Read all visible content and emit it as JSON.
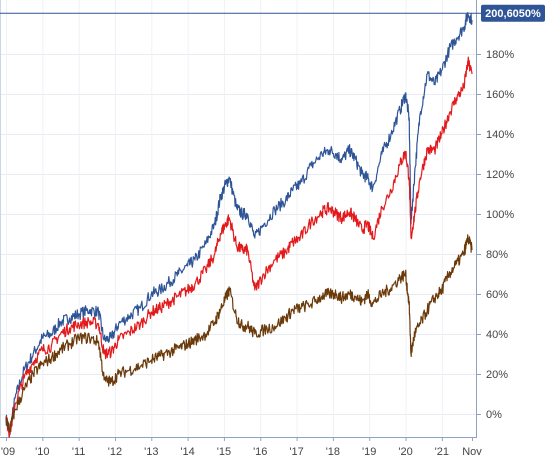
{
  "chart_data": {
    "type": "line",
    "title": "",
    "xlabel": "",
    "ylabel": "",
    "x_ticks": [
      "'09",
      "'10",
      "'11",
      "'12",
      "'13",
      "'14",
      "'15",
      "'16",
      "'17",
      "'18",
      "'19",
      "'20",
      "'21",
      "Nov"
    ],
    "y_ticks": [
      "0%",
      "20%",
      "40%",
      "60%",
      "80%",
      "100%",
      "120%",
      "140%",
      "160%",
      "180%"
    ],
    "x_range": [
      2009.0,
      2021.83
    ],
    "ylim": [
      -12,
      205
    ],
    "grid": true,
    "legend": "none",
    "current_value_label": "200,6050%",
    "current_value": 200.605,
    "series": [
      {
        "color": "#2f5597",
        "x": [
          2009.0,
          2009.1,
          2009.25,
          2009.5,
          2009.75,
          2010.0,
          2010.25,
          2010.5,
          2010.75,
          2011.0,
          2011.3,
          2011.55,
          2011.7,
          2011.9,
          2012.1,
          2012.4,
          2012.7,
          2013.0,
          2013.25,
          2013.5,
          2013.75,
          2014.0,
          2014.2,
          2014.5,
          2014.75,
          2014.9,
          2015.05,
          2015.15,
          2015.35,
          2015.5,
          2015.65,
          2015.85,
          2016.1,
          2016.4,
          2016.7,
          2016.9,
          2017.1,
          2017.4,
          2017.7,
          2017.9,
          2018.1,
          2018.25,
          2018.45,
          2018.6,
          2018.8,
          2018.95,
          2019.1,
          2019.35,
          2019.6,
          2019.85,
          2020.0,
          2020.1,
          2020.15,
          2020.25,
          2020.4,
          2020.6,
          2020.8,
          2021.0,
          2021.2,
          2021.4,
          2021.6,
          2021.72,
          2021.83
        ],
        "values": [
          -2,
          -10,
          8,
          22,
          30,
          38,
          40,
          46,
          48,
          50,
          52,
          51,
          37,
          38,
          45,
          49,
          53,
          60,
          62,
          66,
          70,
          74,
          77,
          85,
          95,
          108,
          115,
          118,
          103,
          100,
          100,
          88,
          95,
          102,
          107,
          112,
          115,
          124,
          130,
          132,
          130,
          127,
          132,
          128,
          120,
          118,
          113,
          130,
          140,
          152,
          160,
          148,
          95,
          120,
          150,
          170,
          165,
          172,
          182,
          188,
          193,
          200,
          197
        ]
      },
      {
        "color": "#e31a1c",
        "x": [
          2009.0,
          2009.1,
          2009.25,
          2009.5,
          2009.75,
          2010.0,
          2010.25,
          2010.5,
          2010.75,
          2011.0,
          2011.3,
          2011.55,
          2011.7,
          2011.9,
          2012.1,
          2012.4,
          2012.7,
          2013.0,
          2013.25,
          2013.5,
          2013.75,
          2014.0,
          2014.2,
          2014.5,
          2014.75,
          2014.9,
          2015.05,
          2015.15,
          2015.35,
          2015.5,
          2015.65,
          2015.85,
          2016.1,
          2016.4,
          2016.7,
          2016.9,
          2017.1,
          2017.4,
          2017.7,
          2017.9,
          2018.1,
          2018.25,
          2018.45,
          2018.6,
          2018.8,
          2018.95,
          2019.1,
          2019.35,
          2019.6,
          2019.85,
          2020.0,
          2020.1,
          2020.15,
          2020.25,
          2020.4,
          2020.6,
          2020.8,
          2021.0,
          2021.2,
          2021.4,
          2021.6,
          2021.72,
          2021.83
        ],
        "values": [
          -2,
          -10,
          5,
          18,
          26,
          32,
          34,
          40,
          43,
          45,
          46,
          45,
          30,
          31,
          37,
          41,
          45,
          51,
          53,
          56,
          59,
          62,
          65,
          72,
          80,
          90,
          95,
          98,
          84,
          82,
          82,
          62,
          70,
          77,
          81,
          86,
          88,
          96,
          101,
          103,
          100,
          98,
          101,
          98,
          92,
          95,
          88,
          103,
          112,
          125,
          131,
          118,
          88,
          100,
          118,
          132,
          132,
          140,
          150,
          158,
          163,
          176,
          170
        ]
      },
      {
        "color": "#6b3a0a",
        "x": [
          2009.0,
          2009.1,
          2009.25,
          2009.5,
          2009.75,
          2010.0,
          2010.25,
          2010.5,
          2010.75,
          2011.0,
          2011.3,
          2011.55,
          2011.7,
          2011.9,
          2012.1,
          2012.4,
          2012.7,
          2013.0,
          2013.25,
          2013.5,
          2013.75,
          2014.0,
          2014.2,
          2014.5,
          2014.75,
          2014.9,
          2015.05,
          2015.15,
          2015.35,
          2015.5,
          2015.65,
          2015.85,
          2016.1,
          2016.4,
          2016.7,
          2016.9,
          2017.1,
          2017.4,
          2017.7,
          2017.9,
          2018.1,
          2018.25,
          2018.45,
          2018.6,
          2018.8,
          2018.95,
          2019.1,
          2019.35,
          2019.6,
          2019.85,
          2020.0,
          2020.1,
          2020.15,
          2020.25,
          2020.4,
          2020.6,
          2020.8,
          2021.0,
          2021.2,
          2021.4,
          2021.6,
          2021.72,
          2021.83
        ],
        "values": [
          -2,
          -8,
          2,
          12,
          20,
          25,
          28,
          32,
          35,
          38,
          38,
          36,
          17,
          16,
          20,
          22,
          24,
          27,
          29,
          31,
          33,
          35,
          37,
          40,
          46,
          52,
          58,
          62,
          48,
          44,
          44,
          40,
          42,
          44,
          48,
          52,
          53,
          55,
          59,
          60,
          60,
          58,
          60,
          59,
          56,
          60,
          55,
          60,
          63,
          68,
          70,
          55,
          30,
          40,
          45,
          52,
          58,
          62,
          70,
          75,
          80,
          88,
          82
        ]
      }
    ]
  }
}
